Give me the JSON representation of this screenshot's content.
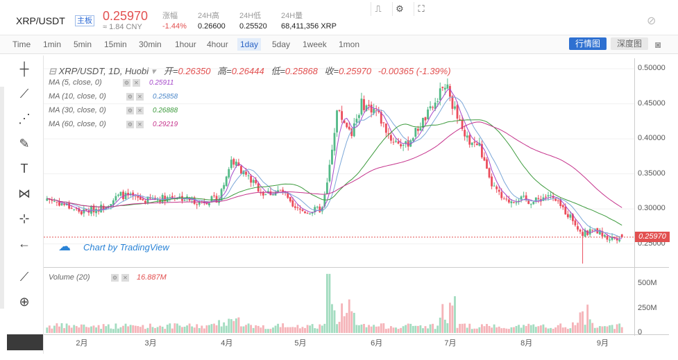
{
  "header": {
    "symbol": "XRP/USDT",
    "badge": "主板",
    "price": "0.25970",
    "cny": "≈ 1.84 CNY",
    "stats": [
      {
        "label": "涨幅",
        "value": "-1.44%"
      },
      {
        "label": "24H高",
        "value": "0.26600"
      },
      {
        "label": "24H低",
        "value": "0.25520"
      },
      {
        "label": "24H量",
        "value": "68,411,356 XRP"
      }
    ]
  },
  "toolbar": {
    "timeframes": [
      "Time",
      "1min",
      "5min",
      "15min",
      "30min",
      "1hour",
      "4hour",
      "1day",
      "5day",
      "1week",
      "1mon"
    ],
    "active": "1day",
    "btn_chart": "行情图",
    "btn_depth": "深度图"
  },
  "legend": {
    "title": "XRP/USDT, 1D, Huobi",
    "open_label": "开=",
    "open": "0.26350",
    "high_label": "高=",
    "high": "0.26444",
    "low_label": "低=",
    "low": "0.25868",
    "close_label": "收=",
    "close": "0.25970",
    "change": "-0.00365 (-1.39%)"
  },
  "ma": [
    {
      "label": "MA (5, close, 0)",
      "value": "0.25911",
      "color": "#a346c9"
    },
    {
      "label": "MA (10, close, 0)",
      "value": "0.25858",
      "color": "#7aa6d8"
    },
    {
      "label": "MA (30, close, 0)",
      "value": "0.26888",
      "color": "#3c9a3c"
    },
    {
      "label": "MA (60, close, 0)",
      "value": "0.29219",
      "color": "#c5338c"
    }
  ],
  "attribution": "Chart by TradingView",
  "volume": {
    "label": "Volume (20)",
    "value": "16.887M"
  },
  "last_price_tag": "0.25970",
  "colors": {
    "up": "#53b987",
    "down": "#eb4d5c",
    "up_vol": "#a3dcc0",
    "down_vol": "#f5b3b8"
  },
  "chart_data": {
    "type": "candlestick",
    "title": "XRP/USDT, 1D, Huobi",
    "y_ticks": [
      "0.50000",
      "0.45000",
      "0.40000",
      "0.35000",
      "0.30000",
      "0.25000"
    ],
    "ylim": [
      0.218,
      0.515
    ],
    "vol_ticks": [
      "500M",
      "250M",
      "0"
    ],
    "vol_max": 620,
    "x_ticks": [
      {
        "label": "2月",
        "day": 14
      },
      {
        "label": "3月",
        "day": 42
      },
      {
        "label": "4月",
        "day": 73
      },
      {
        "label": "5月",
        "day": 103
      },
      {
        "label": "6月",
        "day": 134
      },
      {
        "label": "7月",
        "day": 164
      },
      {
        "label": "8月",
        "day": 195
      },
      {
        "label": "9月",
        "day": 226
      }
    ],
    "key_points": [
      [
        0,
        0.315
      ],
      [
        8,
        0.305
      ],
      [
        14,
        0.295
      ],
      [
        22,
        0.302
      ],
      [
        30,
        0.32
      ],
      [
        40,
        0.312
      ],
      [
        52,
        0.318
      ],
      [
        62,
        0.31
      ],
      [
        70,
        0.315
      ],
      [
        75,
        0.37
      ],
      [
        80,
        0.352
      ],
      [
        88,
        0.322
      ],
      [
        96,
        0.325
      ],
      [
        100,
        0.3
      ],
      [
        106,
        0.296
      ],
      [
        112,
        0.3
      ],
      [
        114,
        0.335
      ],
      [
        118,
        0.44
      ],
      [
        124,
        0.41
      ],
      [
        128,
        0.45
      ],
      [
        134,
        0.44
      ],
      [
        140,
        0.4
      ],
      [
        146,
        0.39
      ],
      [
        152,
        0.42
      ],
      [
        158,
        0.45
      ],
      [
        162,
        0.48
      ],
      [
        166,
        0.44
      ],
      [
        170,
        0.4
      ],
      [
        176,
        0.39
      ],
      [
        180,
        0.34
      ],
      [
        186,
        0.31
      ],
      [
        192,
        0.315
      ],
      [
        198,
        0.31
      ],
      [
        204,
        0.32
      ],
      [
        210,
        0.3
      ],
      [
        214,
        0.285
      ],
      [
        218,
        0.265
      ],
      [
        224,
        0.268
      ],
      [
        228,
        0.258
      ],
      [
        234,
        0.26
      ]
    ]
  }
}
